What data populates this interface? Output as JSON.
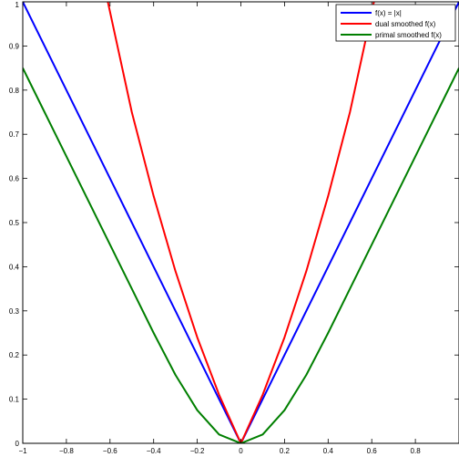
{
  "chart_data": {
    "type": "line",
    "title": "",
    "xlabel": "",
    "ylabel": "",
    "xlim": [
      -1,
      1
    ],
    "ylim": [
      0,
      1
    ],
    "x_ticks": [
      "-1",
      "-0.8",
      "-0.6",
      "-0.4",
      "-0.2",
      "0",
      "0.2",
      "0.4",
      "0.6",
      "0.8"
    ],
    "y_ticks": [
      "0",
      "0.1",
      "0.2",
      "0.3",
      "0.4",
      "0.5",
      "0.6",
      "0.7",
      "0.8",
      "0.9",
      "1"
    ],
    "grid": false,
    "legend_position": "top-right",
    "x": [
      -1,
      -0.9,
      -0.8,
      -0.7,
      -0.6,
      -0.5,
      -0.4,
      -0.3,
      -0.2,
      -0.1,
      0,
      0.1,
      0.2,
      0.3,
      0.4,
      0.5,
      0.6,
      0.7,
      0.8,
      0.9,
      1
    ],
    "series": [
      {
        "name": "f(x) = |x|",
        "color": "#0000ff",
        "values": [
          1,
          0.9,
          0.8,
          0.7,
          0.6,
          0.5,
          0.4,
          0.3,
          0.2,
          0.1,
          0,
          0.1,
          0.2,
          0.3,
          0.4,
          0.5,
          0.6,
          0.7,
          0.8,
          0.9,
          1
        ]
      },
      {
        "name": "dual smoothed f(x)",
        "color": "#ff0000",
        "x": [
          -0.61,
          -0.5,
          -0.4,
          -0.3,
          -0.2,
          -0.1,
          0,
          0.1,
          0.2,
          0.3,
          0.4,
          0.5,
          0.61
        ],
        "values": [
          1.0,
          0.75,
          0.56,
          0.39,
          0.24,
          0.11,
          0,
          0.11,
          0.24,
          0.39,
          0.56,
          0.75,
          1.0
        ]
      },
      {
        "name": "primal smoothed f(x)",
        "color": "#007f00",
        "values": [
          0.85,
          0.75,
          0.65,
          0.55,
          0.45,
          0.35,
          0.25,
          0.155,
          0.075,
          0.02,
          0,
          0.02,
          0.075,
          0.155,
          0.25,
          0.35,
          0.45,
          0.55,
          0.65,
          0.75,
          0.85
        ]
      }
    ]
  }
}
